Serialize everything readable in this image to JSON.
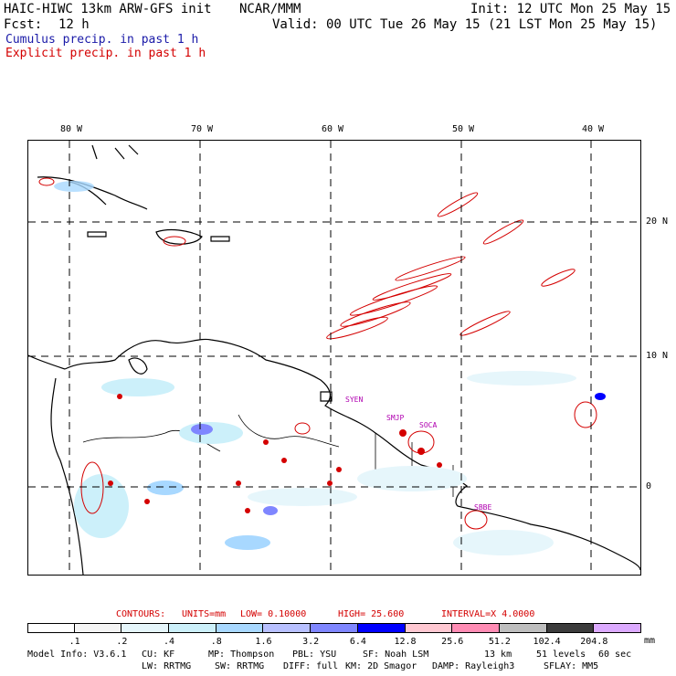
{
  "header": {
    "model": "HAIC-HIWC 13km ARW-GFS init",
    "org": "NCAR/MMM",
    "init": "Init: 12 UTC Mon 25 May 15",
    "fcst_label": "Fcst:",
    "fcst_value": "12 h",
    "valid": "Valid: 00 UTC Tue 26 May 15 (21 LST Mon 25 May 15)",
    "cumulus": "Cumulus precip. in past 1 h",
    "explicit": "Explicit precip. in past 1 h"
  },
  "map": {
    "lon_labels": [
      "80 W",
      "70 W",
      "60 W",
      "50 W",
      "40 W"
    ],
    "lat_labels": [
      "20 N",
      "10 N",
      "0"
    ],
    "stations": [
      "SYEN",
      "SMJP",
      "SOCA",
      "SBBE"
    ],
    "colors": {
      "cumulus": "#1a1aa8",
      "explicit": "#d40000",
      "coast": "#000000"
    }
  },
  "contours": {
    "label": "CONTOURS:",
    "units": "UNITS=mm",
    "low": "LOW= 0.10000",
    "high": "HIGH= 25.600",
    "interval": "INTERVAL=X 4.0000"
  },
  "colorbar": {
    "ticks": [
      ".1",
      ".2",
      ".4",
      ".8",
      "1.6",
      "3.2",
      "6.4",
      "12.8",
      "25.6",
      "51.2",
      "102.4",
      "204.8"
    ],
    "unit": "mm",
    "colors": [
      "#ffffff",
      "#f4f4f4",
      "#e6f6fb",
      "#ccf0fa",
      "#a8d8ff",
      "#b8c0ff",
      "#7f86ff",
      "#0000ff",
      "#ffc8d2",
      "#ff8cb4",
      "#bebebe",
      "#3c3c3c",
      "#dcaaff"
    ]
  },
  "footer": {
    "line1": [
      "Model Info: V3.6.1",
      "CU: KF",
      "MP: Thompson",
      "PBL: YSU",
      "SF: Noah LSM",
      "13 km",
      "51 levels",
      "60 sec"
    ],
    "line2": [
      "LW: RRTMG",
      "SW: RRTMG",
      "DIFF: full",
      "KM: 2D Smagor",
      "DAMP: Rayleigh3",
      "SFLAY: MM5"
    ]
  }
}
